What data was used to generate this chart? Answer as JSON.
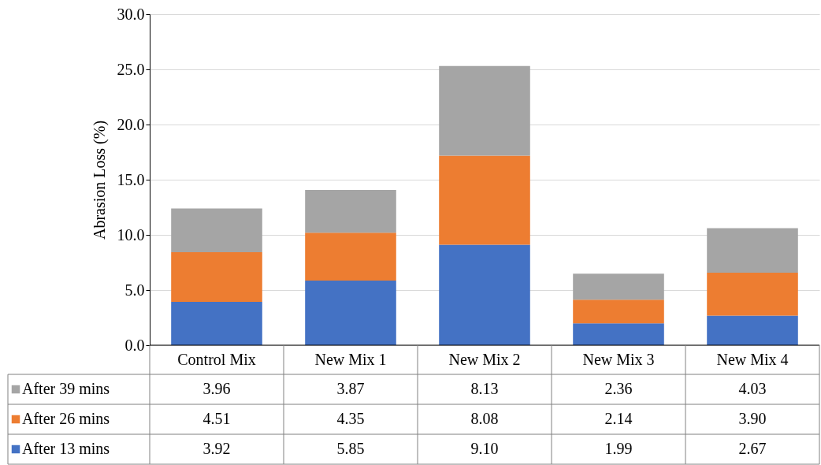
{
  "chart_data": {
    "type": "bar",
    "stacked": true,
    "ylabel": "Abrasion Loss  (%)",
    "categories": [
      "Control Mix",
      "New Mix 1",
      "New Mix 2",
      "New Mix 3",
      "New Mix 4"
    ],
    "series": [
      {
        "name": "After 13 mins",
        "color": "#4472c4",
        "values": [
          3.92,
          5.85,
          9.1,
          1.99,
          2.67
        ],
        "value_labels": [
          "3.92",
          "5.85",
          "9.10",
          "1.99",
          "2.67"
        ]
      },
      {
        "name": "After 26 mins",
        "color": "#ed7d31",
        "values": [
          4.51,
          4.35,
          8.08,
          2.14,
          3.9
        ],
        "value_labels": [
          "4.51",
          "4.35",
          "8.08",
          "2.14",
          "3.90"
        ]
      },
      {
        "name": "After 39 mins",
        "color": "#a5a5a5",
        "values": [
          3.96,
          3.87,
          8.13,
          2.36,
          4.03
        ],
        "value_labels": [
          "3.96",
          "3.87",
          "8.13",
          "2.36",
          "4.03"
        ]
      }
    ],
    "ylim": [
      0,
      30
    ],
    "yticks": [
      {
        "value": 0,
        "label": "0.0"
      },
      {
        "value": 5,
        "label": "5.0"
      },
      {
        "value": 10,
        "label": "10.0"
      },
      {
        "value": 15,
        "label": "15.0"
      },
      {
        "value": 20,
        "label": "20.0"
      },
      {
        "value": 25,
        "label": "25.0"
      },
      {
        "value": 30,
        "label": "30.0"
      }
    ],
    "grid": "y",
    "legend": "bottom"
  }
}
